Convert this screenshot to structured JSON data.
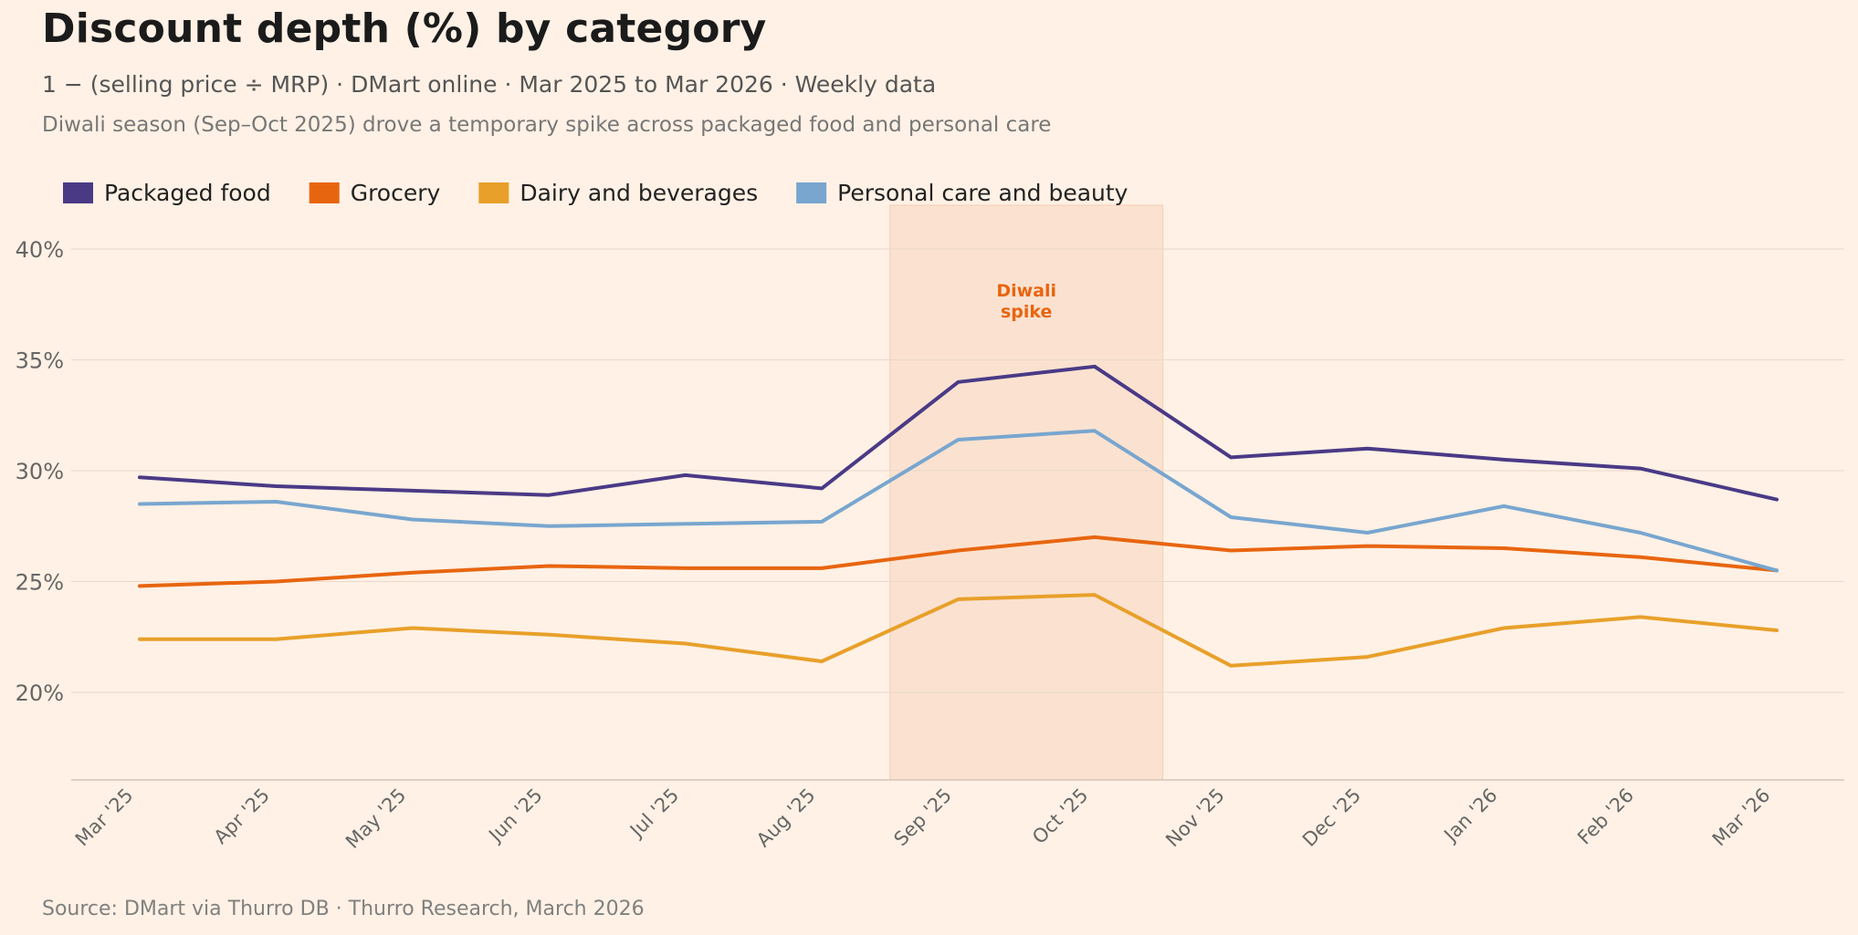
{
  "header": {
    "title": "Discount depth (%) by category",
    "subtitle": "1 − (selling price ÷ MRP) · DMart online · Mar 2025 to Mar 2026 · Weekly data",
    "note": "Diwali season (Sep–Oct 2025) drove a temporary spike across packaged food and personal care"
  },
  "footer": {
    "source": "Source: DMart via Thurro DB · Thurro Research, March 2026"
  },
  "colors": {
    "background": "#fff1e5",
    "packaged_food": "#4a3a86",
    "grocery": "#e8650f",
    "dairy": "#e8a02a",
    "personal_care": "#78a6cf",
    "highlight": "#fadfcc",
    "annotation": "#e8650f"
  },
  "chart_data": {
    "type": "line",
    "title": "Discount depth (%) by category",
    "xlabel": "",
    "ylabel": "",
    "ylim": [
      16,
      42
    ],
    "yticks": [
      20,
      25,
      30,
      35,
      40
    ],
    "ytick_labels": [
      "20%",
      "25%",
      "30%",
      "35%",
      "40%"
    ],
    "grid": true,
    "legend": "top-left",
    "categories": [
      "Mar '25",
      "Apr '25",
      "May '25",
      "Jun '25",
      "Jul '25",
      "Aug '25",
      "Sep '25",
      "Oct '25",
      "Nov '25",
      "Dec '25",
      "Jan '26",
      "Feb '26",
      "Mar '26"
    ],
    "series": [
      {
        "name": "Packaged food",
        "color_key": "packaged_food",
        "values": [
          29.7,
          29.3,
          29.1,
          28.9,
          29.8,
          29.2,
          34.0,
          34.7,
          30.6,
          31.0,
          30.5,
          30.1,
          28.7
        ]
      },
      {
        "name": "Grocery",
        "color_key": "grocery",
        "values": [
          24.8,
          25.0,
          25.4,
          25.7,
          25.6,
          25.6,
          26.4,
          27.0,
          26.4,
          26.6,
          26.5,
          26.1,
          25.5
        ]
      },
      {
        "name": "Dairy and beverages",
        "color_key": "dairy",
        "values": [
          22.4,
          22.4,
          22.9,
          22.6,
          22.2,
          21.4,
          24.2,
          24.4,
          21.2,
          21.6,
          22.9,
          23.4,
          22.8
        ]
      },
      {
        "name": "Personal care and beauty",
        "color_key": "personal_care",
        "values": [
          28.5,
          28.6,
          27.8,
          27.5,
          27.6,
          27.7,
          31.4,
          31.8,
          27.9,
          27.2,
          28.4,
          27.2,
          25.5
        ]
      }
    ],
    "highlight": {
      "from_index": 5.5,
      "to_index": 7.5,
      "label_line1": "Diwali",
      "label_line2": "spike",
      "label_y": 37.5
    }
  }
}
